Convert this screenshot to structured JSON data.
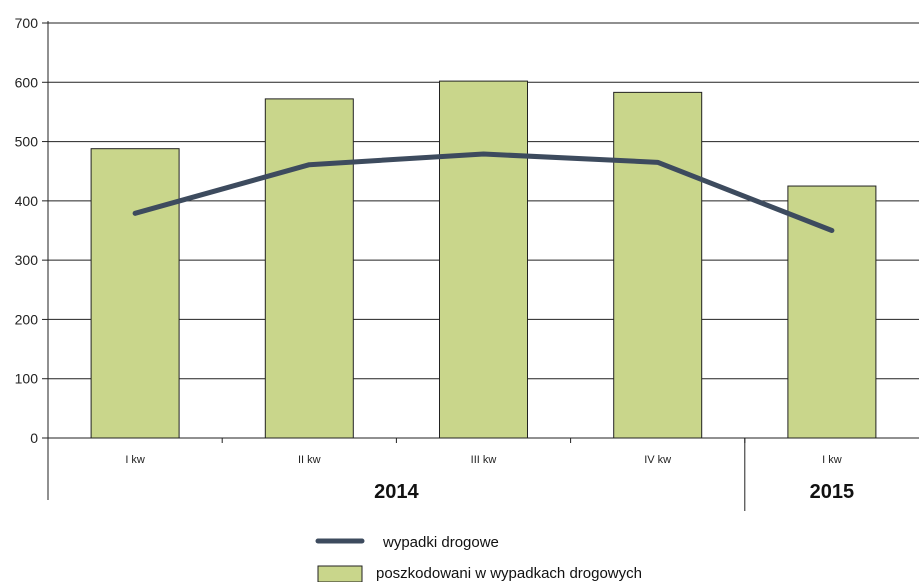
{
  "chart_data": {
    "type": "bar",
    "categories": [
      "I kw",
      "II kw",
      "III kw",
      "IV kw",
      "I kw"
    ],
    "groups": [
      {
        "label": "2014",
        "categories": [
          "I kw",
          "II kw",
          "III kw",
          "IV kw"
        ]
      },
      {
        "label": "2015",
        "categories": [
          "I kw"
        ]
      }
    ],
    "series": [
      {
        "name": "poszkodowani w wypadkach drogowych",
        "type": "bar",
        "color": "#c9d68b",
        "values": [
          488,
          572,
          602,
          583,
          425
        ]
      },
      {
        "name": "wypadki drogowe",
        "type": "line",
        "color": "#3d4b5e",
        "values": [
          379,
          461,
          479,
          465,
          350
        ]
      }
    ],
    "yticks": [
      0,
      100,
      200,
      300,
      400,
      500,
      600,
      700
    ],
    "ylim": [
      0,
      700
    ],
    "title": "",
    "xlabel": "",
    "ylabel": "",
    "grid": true,
    "legend_position": "bottom"
  }
}
